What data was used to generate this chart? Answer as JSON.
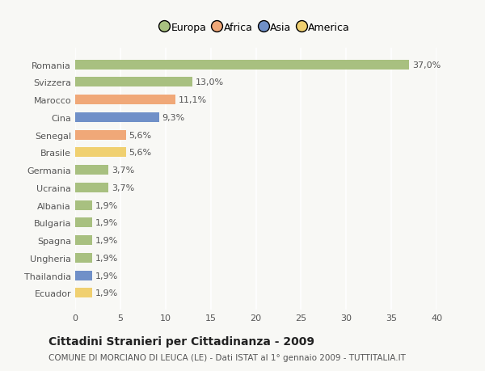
{
  "categories": [
    "Romania",
    "Svizzera",
    "Marocco",
    "Cina",
    "Senegal",
    "Brasile",
    "Germania",
    "Ucraina",
    "Albania",
    "Bulgaria",
    "Spagna",
    "Ungheria",
    "Thailandia",
    "Ecuador"
  ],
  "values": [
    37.0,
    13.0,
    11.1,
    9.3,
    5.6,
    5.6,
    3.7,
    3.7,
    1.9,
    1.9,
    1.9,
    1.9,
    1.9,
    1.9
  ],
  "labels": [
    "37,0%",
    "13,0%",
    "11,1%",
    "9,3%",
    "5,6%",
    "5,6%",
    "3,7%",
    "3,7%",
    "1,9%",
    "1,9%",
    "1,9%",
    "1,9%",
    "1,9%",
    "1,9%"
  ],
  "colors": [
    "#a8c080",
    "#a8c080",
    "#f0a878",
    "#7090c8",
    "#f0a878",
    "#f0d070",
    "#a8c080",
    "#a8c080",
    "#a8c080",
    "#a8c080",
    "#a8c080",
    "#a8c080",
    "#7090c8",
    "#f0d070"
  ],
  "legend_labels": [
    "Europa",
    "Africa",
    "Asia",
    "America"
  ],
  "legend_colors": [
    "#a8c080",
    "#f0a878",
    "#7090c8",
    "#f0d070"
  ],
  "title": "Cittadini Stranieri per Cittadinanza - 2009",
  "subtitle": "COMUNE DI MORCIANO DI LEUCA (LE) - Dati ISTAT al 1° gennaio 2009 - TUTTITALIA.IT",
  "xlim": [
    0,
    40
  ],
  "xticks": [
    0,
    5,
    10,
    15,
    20,
    25,
    30,
    35,
    40
  ],
  "background_color": "#f8f8f5",
  "bar_height": 0.55,
  "label_fontsize": 8,
  "tick_fontsize": 8,
  "title_fontsize": 10,
  "subtitle_fontsize": 7.5
}
